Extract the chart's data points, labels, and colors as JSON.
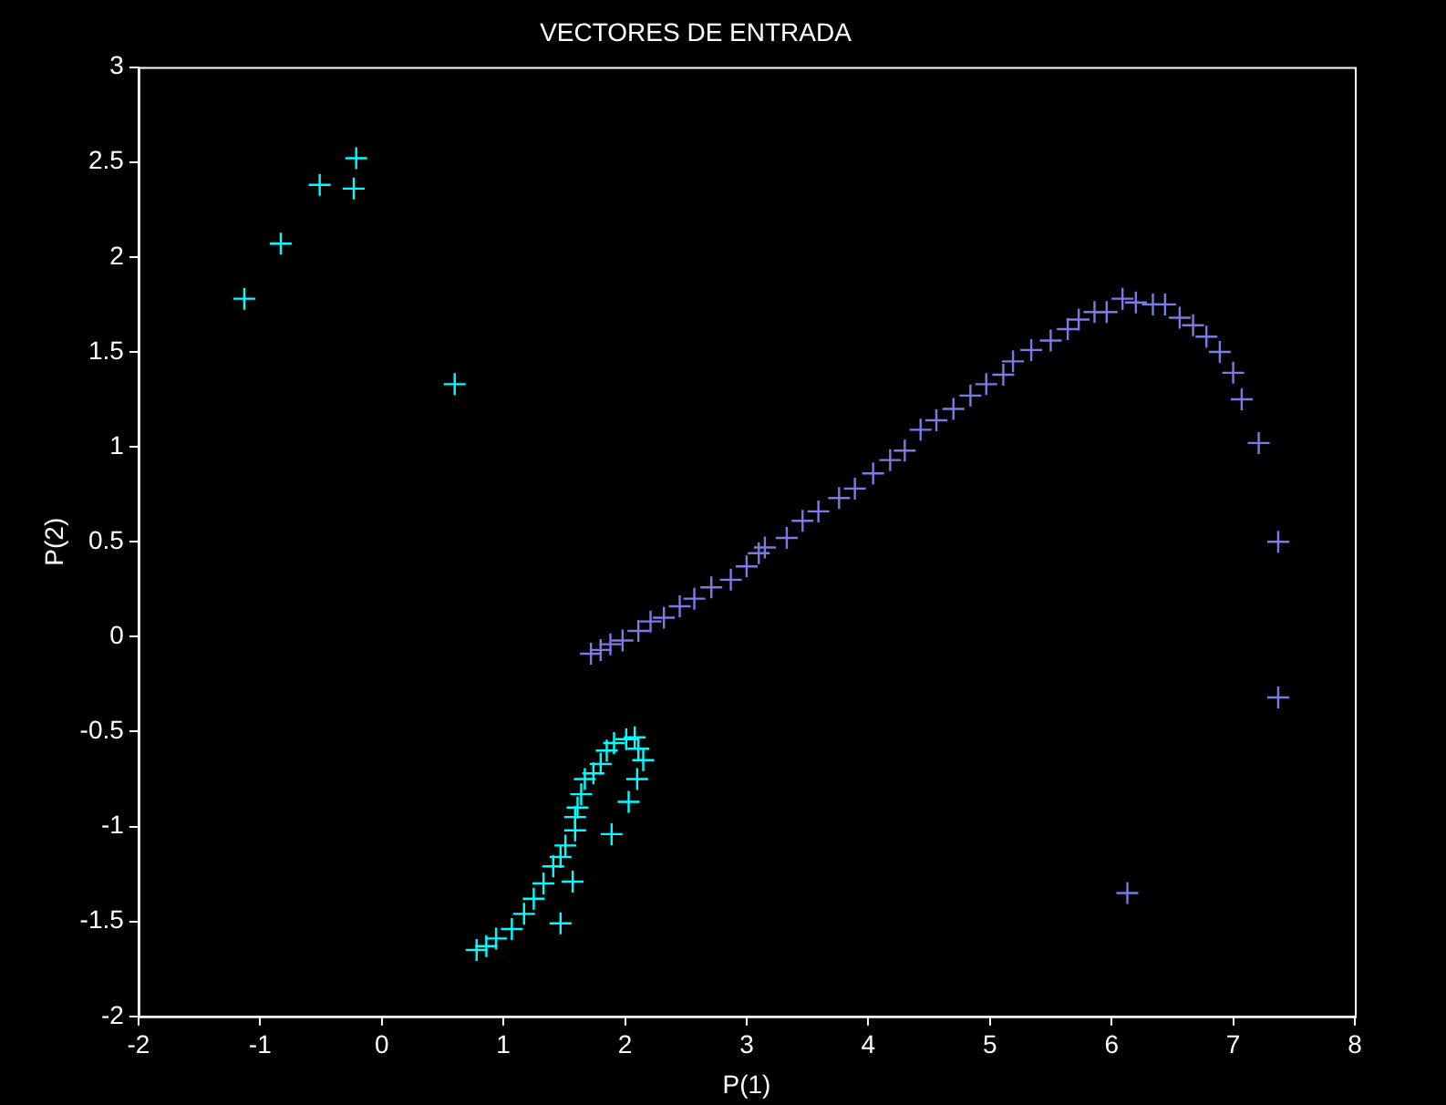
{
  "chart_data": {
    "type": "scatter",
    "title": "VECTORES DE ENTRADA",
    "xlabel": "P(1)",
    "ylabel": "P(2)",
    "xlim": [
      -2,
      8
    ],
    "xticks": [
      -2,
      -1,
      0,
      1,
      2,
      3,
      4,
      5,
      6,
      7,
      8
    ],
    "ylim": [
      -2,
      3
    ],
    "yticks": [
      -2,
      -1.5,
      -1,
      -0.5,
      0,
      0.5,
      1,
      1.5,
      2,
      2.5,
      3
    ],
    "grid": false,
    "legend": false,
    "marker": "cross",
    "series": [
      {
        "color": "#00ffff",
        "x": [
          -0.21,
          -0.51,
          -0.23,
          -0.83,
          -1.13,
          0.6,
          0.78,
          0.86,
          0.94,
          1.07,
          1.17,
          1.25,
          1.33,
          1.41,
          1.47,
          1.51,
          1.59,
          1.59,
          1.61,
          1.64,
          1.67,
          1.74,
          1.8,
          1.85,
          1.91,
          2.01,
          2.08,
          2.11,
          2.15,
          2.1,
          2.03,
          1.89,
          1.57,
          1.47
        ],
        "values": [
          2.52,
          2.38,
          2.36,
          2.07,
          1.78,
          1.33,
          -1.65,
          -1.63,
          -1.59,
          -1.54,
          -1.46,
          -1.38,
          -1.3,
          -1.21,
          -1.16,
          -1.1,
          -1.02,
          -0.95,
          -0.9,
          -0.83,
          -0.75,
          -0.72,
          -0.67,
          -0.6,
          -0.56,
          -0.54,
          -0.53,
          -0.59,
          -0.65,
          -0.75,
          -0.87,
          -1.04,
          -1.29,
          -1.51
        ]
      },
      {
        "color": "#7b7be6",
        "x": [
          1.72,
          1.8,
          1.88,
          1.98,
          2.11,
          2.21,
          2.32,
          2.45,
          2.57,
          2.71,
          2.87,
          3.0,
          3.1,
          3.15,
          3.33,
          3.46,
          3.59,
          3.76,
          3.89,
          4.04,
          4.18,
          4.3,
          4.43,
          4.56,
          4.7,
          4.84,
          4.97,
          5.11,
          5.19,
          5.34,
          5.5,
          5.64,
          5.73,
          5.86,
          5.96,
          6.09,
          6.2,
          6.34,
          6.44,
          6.56,
          6.67,
          6.78,
          6.89,
          7.0,
          7.07,
          7.21,
          7.37,
          7.37,
          6.13
        ],
        "values": [
          -0.09,
          -0.07,
          -0.04,
          -0.02,
          0.03,
          0.08,
          0.1,
          0.16,
          0.2,
          0.26,
          0.3,
          0.37,
          0.44,
          0.47,
          0.52,
          0.61,
          0.66,
          0.73,
          0.78,
          0.86,
          0.93,
          0.98,
          1.09,
          1.14,
          1.2,
          1.27,
          1.33,
          1.38,
          1.45,
          1.51,
          1.56,
          1.62,
          1.67,
          1.71,
          1.71,
          1.78,
          1.76,
          1.75,
          1.75,
          1.68,
          1.64,
          1.58,
          1.5,
          1.39,
          1.25,
          1.02,
          0.5,
          -0.32,
          -1.35
        ]
      }
    ]
  }
}
